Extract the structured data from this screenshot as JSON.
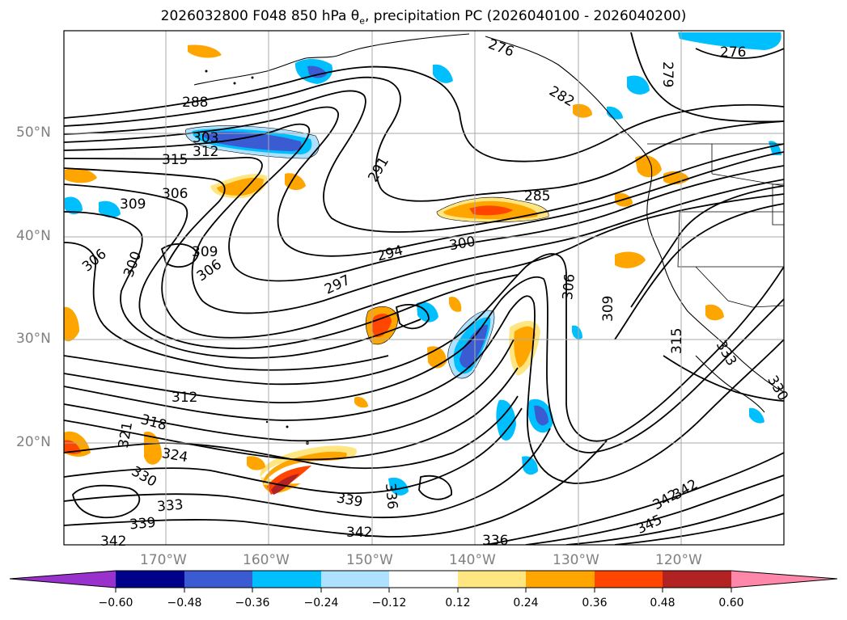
{
  "title": {
    "main": "2026032800 F048 850 hPa θ",
    "sub": "e",
    "tail": ", precipitation PC (2026040100 - 2026040200)"
  },
  "latitude_labels": [
    "50°N",
    "40°N",
    "30°N",
    "20°N"
  ],
  "longitude_labels": [
    "170°W",
    "160°W",
    "150°W",
    "140°W",
    "130°W",
    "120°W"
  ],
  "contour_labels": [
    "288",
    "303",
    "315",
    "312",
    "306",
    "309",
    "300",
    "306",
    "309",
    "306",
    "291",
    "285",
    "294",
    "300",
    "297",
    "306",
    "309",
    "315",
    "276",
    "276",
    "279",
    "282",
    "312",
    "321",
    "318",
    "324",
    "330",
    "333",
    "339",
    "342",
    "339",
    "336",
    "342",
    "336",
    "345",
    "342",
    "342",
    "330",
    "333"
  ],
  "colorbar": {
    "ticks": [
      "−0.60",
      "−0.48",
      "−0.36",
      "−0.24",
      "−0.12",
      "0.12",
      "0.24",
      "0.36",
      "0.48",
      "0.60"
    ],
    "colors": [
      "#9932CC",
      "#00008B",
      "#3A5BD1",
      "#00BFFF",
      "#ADE1FF",
      "#FFFFFF",
      "#FFE680",
      "#FFA500",
      "#FF4500",
      "#B22222",
      "#FF88AA"
    ]
  },
  "colors": {
    "negative_light": "#ADE1FF",
    "negative_mid": "#00BFFF",
    "negative_strong": "#3A5BD1",
    "positive_light": "#FFE680",
    "positive_mid": "#FFA500",
    "positive_strong": "#FF4500",
    "contour": "#000000",
    "grid": "#AAAAAA"
  }
}
